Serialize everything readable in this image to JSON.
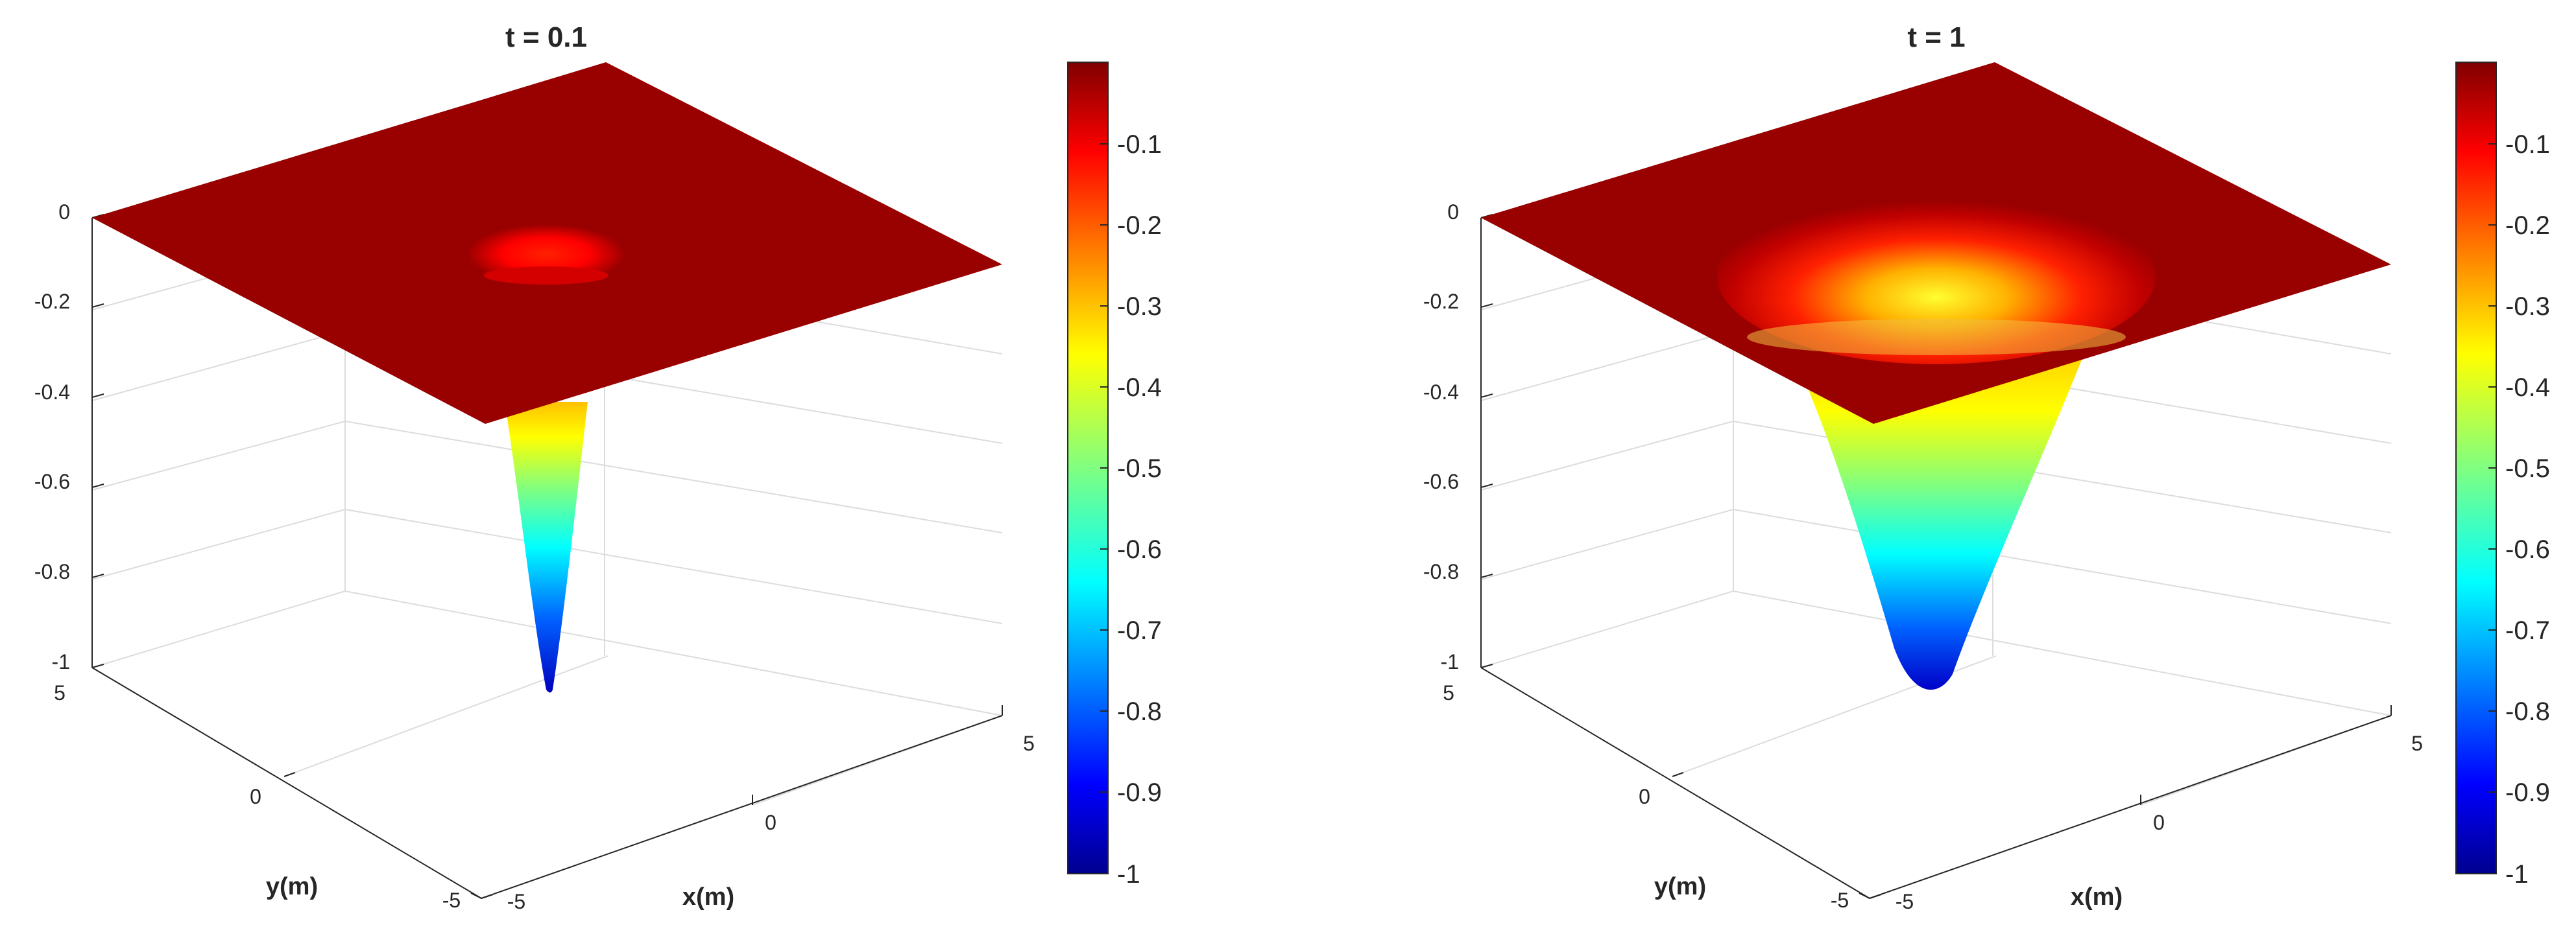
{
  "chart_data": [
    {
      "type": "surface",
      "title": "t = 0.1",
      "xlabel": "x(m)",
      "ylabel": "y(m)",
      "zlabel": "",
      "x_ticks": [
        "-5",
        "0",
        "5"
      ],
      "y_ticks": [
        "-5",
        "0",
        "5"
      ],
      "z_ticks": [
        "-1",
        "-0.8",
        "-0.6",
        "-0.4",
        "-0.2",
        "0"
      ],
      "xlim": [
        -5,
        5
      ],
      "ylim": [
        -5,
        5
      ],
      "zlim": [
        -1,
        0
      ],
      "grid": true,
      "colormap": "jet",
      "colorbar": {
        "limits": [
          -1,
          0
        ],
        "ticks": [
          "-0.1",
          "-0.2",
          "-0.3",
          "-0.4",
          "-0.5",
          "-0.6",
          "-0.7",
          "-0.8",
          "-0.9",
          "-1"
        ]
      },
      "surface": {
        "function": "gaussian well centered at origin",
        "min_value": -1,
        "center": [
          0,
          0
        ],
        "visible_well_radius": 0.9,
        "description_values": {
          "depth_at_center": -1,
          "value_at_edges": 0
        }
      }
    },
    {
      "type": "surface",
      "title": "t = 1",
      "xlabel": "x(m)",
      "ylabel": "y(m)",
      "zlabel": "",
      "x_ticks": [
        "-5",
        "0",
        "5"
      ],
      "y_ticks": [
        "-5",
        "0",
        "5"
      ],
      "z_ticks": [
        "-1",
        "-0.8",
        "-0.6",
        "-0.4",
        "-0.2",
        "0"
      ],
      "xlim": [
        -5,
        5
      ],
      "ylim": [
        -5,
        5
      ],
      "zlim": [
        -1,
        0
      ],
      "grid": true,
      "colormap": "jet",
      "colorbar": {
        "limits": [
          -1,
          0
        ],
        "ticks": [
          "-0.1",
          "-0.2",
          "-0.3",
          "-0.4",
          "-0.5",
          "-0.6",
          "-0.7",
          "-0.8",
          "-0.9",
          "-1"
        ]
      },
      "surface": {
        "function": "gaussian well centered at origin",
        "min_value": -1,
        "center": [
          0,
          0
        ],
        "visible_well_radius": 2.8,
        "description_values": {
          "depth_at_center": -1,
          "value_at_edges": 0
        }
      }
    }
  ],
  "colors": {
    "axis_line": "#262626",
    "grid_line": "#dcdcdc",
    "surface_top": "#990000"
  }
}
